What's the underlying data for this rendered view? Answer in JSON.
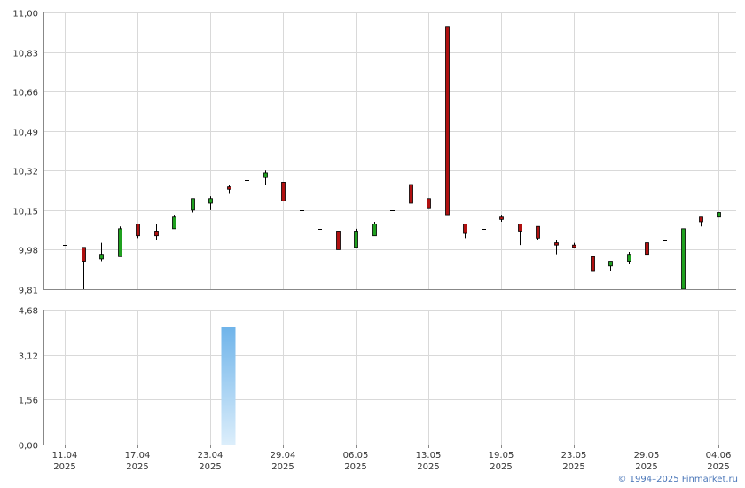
{
  "colors": {
    "up": "#1fa01f",
    "down": "#b01010",
    "grid": "#d9d9d9",
    "axis": "#888888",
    "volume_top": "#6fb4ea",
    "volume_bottom": "#dceefb"
  },
  "credit": "© 1994–2025 Finmarket.ru",
  "chart_data": [
    {
      "type": "candlestick",
      "ylim": [
        9.81,
        11.0
      ],
      "y_ticks": [
        "9,81",
        "9,98",
        "10,15",
        "10,32",
        "10,49",
        "10,66",
        "10,83",
        "11,00"
      ],
      "x_ticks": [
        {
          "date": "11.04",
          "year": "2025"
        },
        {
          "date": "17.04",
          "year": "2025"
        },
        {
          "date": "23.04",
          "year": "2025"
        },
        {
          "date": "29.04",
          "year": "2025"
        },
        {
          "date": "06.05",
          "year": "2025"
        },
        {
          "date": "13.05",
          "year": "2025"
        },
        {
          "date": "19.05",
          "year": "2025"
        },
        {
          "date": "23.05",
          "year": "2025"
        },
        {
          "date": "29.05",
          "year": "2025"
        },
        {
          "date": "04.06",
          "year": "2025"
        }
      ],
      "grid": true,
      "candles": [
        {
          "date": "11.04",
          "open": 10.0,
          "high": 10.0,
          "low": 10.0,
          "close": 10.0
        },
        {
          "date": "14.04",
          "open": 9.99,
          "high": 9.99,
          "low": 9.81,
          "close": 9.93
        },
        {
          "date": "15.04",
          "open": 9.94,
          "high": 10.01,
          "low": 9.93,
          "close": 9.96
        },
        {
          "date": "16.04",
          "open": 9.95,
          "high": 10.08,
          "low": 9.95,
          "close": 10.07
        },
        {
          "date": "17.04",
          "open": 10.09,
          "high": 10.09,
          "low": 10.03,
          "close": 10.04
        },
        {
          "date": "18.04",
          "open": 10.06,
          "high": 10.09,
          "low": 10.02,
          "close": 10.04
        },
        {
          "date": "21.04",
          "open": 10.07,
          "high": 10.13,
          "low": 10.07,
          "close": 10.12
        },
        {
          "date": "22.04",
          "open": 10.15,
          "high": 10.2,
          "low": 10.14,
          "close": 10.2
        },
        {
          "date": "23.04",
          "open": 10.18,
          "high": 10.21,
          "low": 10.15,
          "close": 10.2
        },
        {
          "date": "24.04",
          "open": 10.25,
          "high": 10.26,
          "low": 10.22,
          "close": 10.24
        },
        {
          "date": "25.04",
          "open": 10.28,
          "high": 10.28,
          "low": 10.28,
          "close": 10.28
        },
        {
          "date": "28.04",
          "open": 10.29,
          "high": 10.32,
          "low": 10.26,
          "close": 10.31
        },
        {
          "date": "29.04",
          "open": 10.27,
          "high": 10.27,
          "low": 10.19,
          "close": 10.19
        },
        {
          "date": "30.04",
          "open": 10.15,
          "high": 10.19,
          "low": 10.13,
          "close": 10.15
        },
        {
          "date": "02.05",
          "open": 10.07,
          "high": 10.07,
          "low": 10.07,
          "close": 10.07
        },
        {
          "date": "05.05",
          "open": 10.06,
          "high": 10.06,
          "low": 9.98,
          "close": 9.98
        },
        {
          "date": "06.05",
          "open": 9.99,
          "high": 10.07,
          "low": 9.99,
          "close": 10.06
        },
        {
          "date": "07.05",
          "open": 10.04,
          "high": 10.1,
          "low": 10.04,
          "close": 10.09
        },
        {
          "date": "08.05",
          "open": 10.15,
          "high": 10.15,
          "low": 10.15,
          "close": 10.15
        },
        {
          "date": "12.05",
          "open": 10.26,
          "high": 10.26,
          "low": 10.18,
          "close": 10.18
        },
        {
          "date": "13.05",
          "open": 10.2,
          "high": 10.2,
          "low": 10.16,
          "close": 10.16
        },
        {
          "date": "14.05",
          "open": 10.94,
          "high": 10.94,
          "low": 10.13,
          "close": 10.13
        },
        {
          "date": "15.05",
          "open": 10.09,
          "high": 10.09,
          "low": 10.03,
          "close": 10.05
        },
        {
          "date": "16.05",
          "open": 10.07,
          "high": 10.07,
          "low": 10.07,
          "close": 10.07
        },
        {
          "date": "19.05",
          "open": 10.12,
          "high": 10.13,
          "low": 10.1,
          "close": 10.11
        },
        {
          "date": "20.05",
          "open": 10.09,
          "high": 10.09,
          "low": 10.0,
          "close": 10.06
        },
        {
          "date": "21.05",
          "open": 10.08,
          "high": 10.08,
          "low": 10.02,
          "close": 10.03
        },
        {
          "date": "22.05",
          "open": 10.01,
          "high": 10.02,
          "low": 9.96,
          "close": 10.0
        },
        {
          "date": "23.05",
          "open": 10.0,
          "high": 10.01,
          "low": 9.99,
          "close": 9.99
        },
        {
          "date": "26.05",
          "open": 9.95,
          "high": 9.95,
          "low": 9.89,
          "close": 9.89
        },
        {
          "date": "27.05",
          "open": 9.91,
          "high": 9.93,
          "low": 9.89,
          "close": 9.93
        },
        {
          "date": "28.05",
          "open": 9.93,
          "high": 9.97,
          "low": 9.92,
          "close": 9.96
        },
        {
          "date": "29.05",
          "open": 10.01,
          "high": 10.01,
          "low": 9.96,
          "close": 9.96
        },
        {
          "date": "30.05",
          "open": 10.02,
          "high": 10.02,
          "low": 10.02,
          "close": 10.02
        },
        {
          "date": "02.06",
          "open": 9.81,
          "high": 10.07,
          "low": 9.81,
          "close": 10.07
        },
        {
          "date": "03.06",
          "open": 10.12,
          "high": 10.12,
          "low": 10.08,
          "close": 10.1
        },
        {
          "date": "04.06",
          "open": 10.12,
          "high": 10.14,
          "low": 10.12,
          "close": 10.14
        }
      ]
    },
    {
      "type": "bar",
      "ylim": [
        0,
        4.68
      ],
      "y_ticks": [
        "0,00",
        "1,56",
        "3,12",
        "4,68"
      ],
      "volumes": [
        {
          "date": "24.04",
          "value": 4.07
        }
      ]
    }
  ]
}
